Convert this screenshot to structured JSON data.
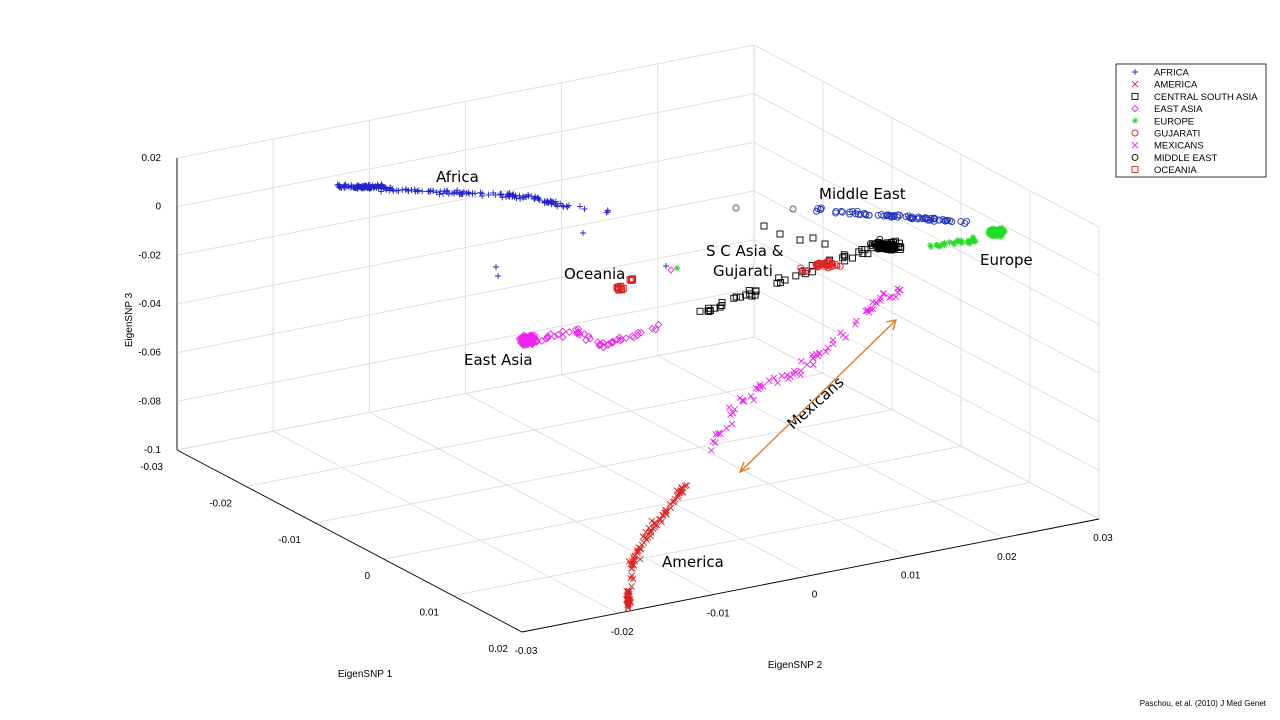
{
  "chart_data": {
    "type": "scatter",
    "projection": "3d",
    "axes": {
      "x": {
        "label": "EigenSNP 1",
        "ticks": [
          "-0.03",
          "-0.02",
          "-0.01",
          "0",
          "0.01",
          "0.02"
        ]
      },
      "y": {
        "label": "EigenSNP 2",
        "ticks": [
          "-0.03",
          "-0.02",
          "-0.01",
          "0",
          "0.01",
          "0.02",
          "0.03"
        ]
      },
      "z": {
        "label": "EigenSNP 3",
        "ticks": [
          "0.02",
          "0",
          "-0.02",
          "-0.04",
          "-0.06",
          "-0.08",
          "-0.1"
        ]
      }
    },
    "grid": true,
    "legend_position": "top-right",
    "series": [
      {
        "name": "AFRICA",
        "marker": "plus",
        "color": "#2222cc"
      },
      {
        "name": "AMERICA",
        "marker": "x",
        "color": "#dd2222"
      },
      {
        "name": "CENTRAL SOUTH ASIA",
        "marker": "square",
        "color": "#000000"
      },
      {
        "name": "EAST ASIA",
        "marker": "diamond",
        "color": "#ee22ee"
      },
      {
        "name": "EUROPE",
        "marker": "star",
        "color": "#22dd22"
      },
      {
        "name": "GUJARATI",
        "marker": "circle",
        "color": "#dd2222"
      },
      {
        "name": "MEXICANS",
        "marker": "x",
        "color": "#ee22ee"
      },
      {
        "name": "MIDDLE EAST",
        "marker": "circle",
        "color": "#000000"
      },
      {
        "name": "OCEANIA",
        "marker": "square",
        "color": "#dd2222"
      }
    ],
    "annotations": [
      "Africa",
      "Middle East",
      "S C Asia &",
      "Gujarati",
      "Oceania",
      "Europe",
      "East Asia",
      "Mexicans",
      "America"
    ]
  },
  "citation": "Paschou, et al. (2010) J Med Genet"
}
